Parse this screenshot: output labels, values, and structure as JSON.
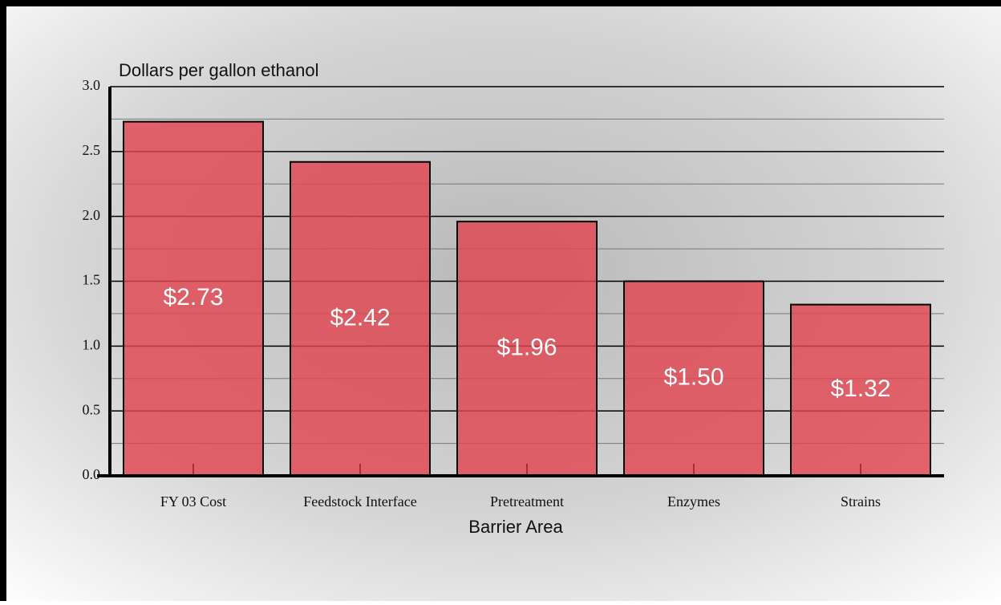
{
  "chart_data": {
    "type": "bar",
    "y_axis_title": "Dollars per gallon ethanol",
    "x_axis_title": "Barrier Area",
    "categories": [
      "FY 03  Cost",
      "Feedstock Interface",
      "Pretreatment",
      "Enzymes",
      "Strains"
    ],
    "values": [
      2.73,
      2.42,
      1.96,
      1.5,
      1.32
    ],
    "value_labels": [
      "$2.73",
      "$2.42",
      "$1.96",
      "$1.50",
      "$1.32"
    ],
    "color": "#e0454f",
    "ylim": [
      0,
      3
    ],
    "yticks": [
      {
        "value": 0,
        "label": "0.0"
      },
      0.5,
      {
        "value": 1,
        "label": "1.0"
      },
      1.5,
      {
        "value": 2,
        "label": "2.0"
      },
      2.5,
      {
        "value": 3,
        "label": "3.0"
      }
    ],
    "minor_yticks": [
      0.25,
      0.75,
      1.25,
      1.75,
      2.25,
      2.75
    ],
    "grid": true
  }
}
